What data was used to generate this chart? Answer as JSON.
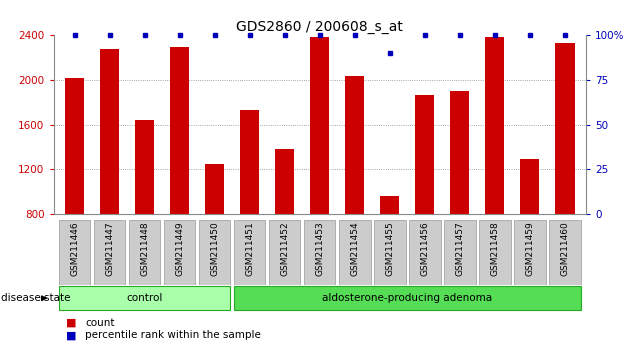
{
  "title": "GDS2860 / 200608_s_at",
  "samples": [
    "GSM211446",
    "GSM211447",
    "GSM211448",
    "GSM211449",
    "GSM211450",
    "GSM211451",
    "GSM211452",
    "GSM211453",
    "GSM211454",
    "GSM211455",
    "GSM211456",
    "GSM211457",
    "GSM211458",
    "GSM211459",
    "GSM211460"
  ],
  "counts": [
    2020,
    2280,
    1640,
    2300,
    1250,
    1730,
    1380,
    2390,
    2040,
    960,
    1870,
    1900,
    2390,
    1290,
    2330
  ],
  "percentiles": [
    100,
    100,
    100,
    100,
    100,
    100,
    100,
    100,
    100,
    90,
    100,
    100,
    100,
    100,
    100
  ],
  "ymin": 800,
  "ymax": 2400,
  "yticks_left": [
    800,
    1200,
    1600,
    2000,
    2400
  ],
  "yticks_right": [
    0,
    25,
    50,
    75,
    100
  ],
  "grid_lines": [
    1200,
    1600,
    2000
  ],
  "bar_color": "#CC0000",
  "dot_color": "#0000BB",
  "bar_width": 0.55,
  "control_count": 5,
  "adenoma_count": 10,
  "control_label": "control",
  "adenoma_label": "aldosterone-producing adenoma",
  "disease_state_label": "disease state",
  "legend_count_label": "count",
  "legend_pct_label": "percentile rank within the sample",
  "title_fontsize": 10,
  "tick_fontsize": 7.5,
  "sample_fontsize": 6.5,
  "ds_label_fontsize": 7.5,
  "legend_fontsize": 7.5,
  "left_color": "#CC0000",
  "right_color": "#0000BB",
  "control_facecolor": "#AAFFAA",
  "adenoma_facecolor": "#55DD55",
  "group_edgecolor": "#22AA22",
  "sample_box_color": "#CCCCCC",
  "sample_box_edge": "#999999"
}
